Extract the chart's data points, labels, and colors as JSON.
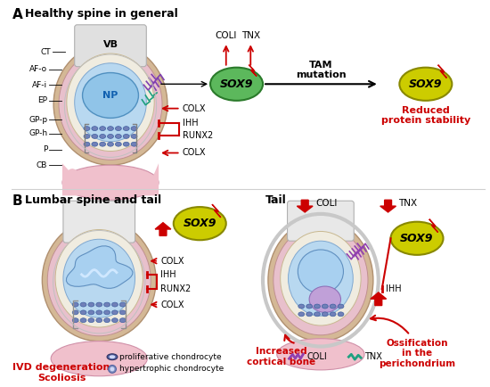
{
  "title_a": "Healthy spine in general",
  "title_b": "Lumbar spine and tail",
  "title_tail": "Tail",
  "label_a": "A",
  "label_b": "B",
  "sox9_green_color": "#5cb85c",
  "sox9_yellow_color": "#cccc00",
  "red_color": "#cc0000",
  "black": "#000000",
  "tam_text": "TAM\nmutation",
  "reduced_text": "Reduced\nprotein stability",
  "ivd_text": "IVD degeneration\nScoliosis",
  "increased_text": "Increased\ncortical bone",
  "ossification_text": "Ossification\nin the\nperichondrium",
  "legend_prolif": "proliferative chondrocyte",
  "legend_hyper": "hypertrophic chondrocyte",
  "legend_coli": "COLI",
  "legend_tnx": "TNX",
  "np_label": "NP",
  "vb_label": "VB",
  "bg_color": "#ffffff"
}
